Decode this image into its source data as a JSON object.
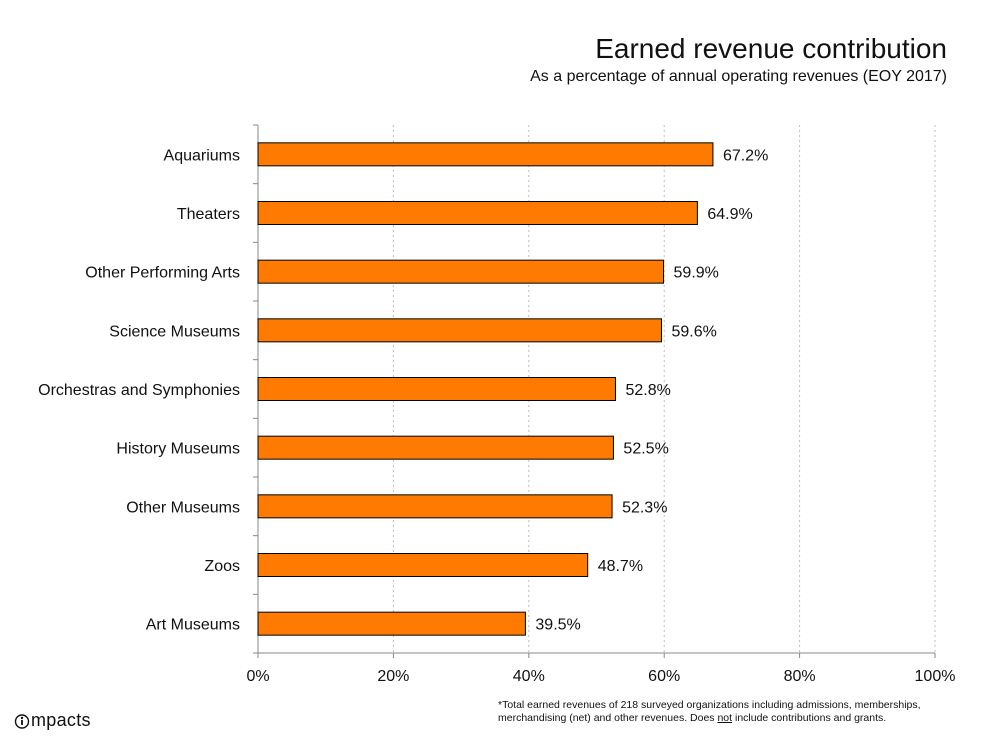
{
  "header": {
    "title": "Earned revenue contribution",
    "subtitle": "As a percentage of annual operating revenues (EOY 2017)"
  },
  "footnote": {
    "part1": "*Total earned revenues of 218 surveyed organizations including admissions, memberships, merchandising (net) and other revenues. Does ",
    "emphasis": "not",
    "part2": " include contributions and grants."
  },
  "logo": {
    "text": "mpacts",
    "icon": "impacts-logo-icon"
  },
  "colors": {
    "bar": "#ff7a00",
    "bar_stroke": "#000000",
    "grid": "#bdbdbd"
  },
  "chart_data": {
    "type": "bar",
    "orientation": "horizontal",
    "categories": [
      "Aquariums",
      "Theaters",
      "Other Performing Arts",
      "Science Museums",
      "Orchestras and Symphonies",
      "History Museums",
      "Other Museums",
      "Zoos",
      "Art Museums"
    ],
    "values": [
      67.2,
      64.9,
      59.9,
      59.6,
      52.8,
      52.5,
      52.3,
      48.7,
      39.5
    ],
    "value_labels": [
      "67.2%",
      "64.9%",
      "59.9%",
      "59.6%",
      "52.8%",
      "52.5%",
      "52.3%",
      "48.7%",
      "39.5%"
    ],
    "xlim": [
      0,
      100
    ],
    "xticks": [
      0,
      20,
      40,
      60,
      80,
      100
    ],
    "xtick_labels": [
      "0%",
      "20%",
      "40%",
      "60%",
      "80%",
      "100%"
    ],
    "grid": true,
    "title": "Earned revenue contribution",
    "subtitle": "As a percentage of annual operating revenues (EOY 2017)"
  }
}
